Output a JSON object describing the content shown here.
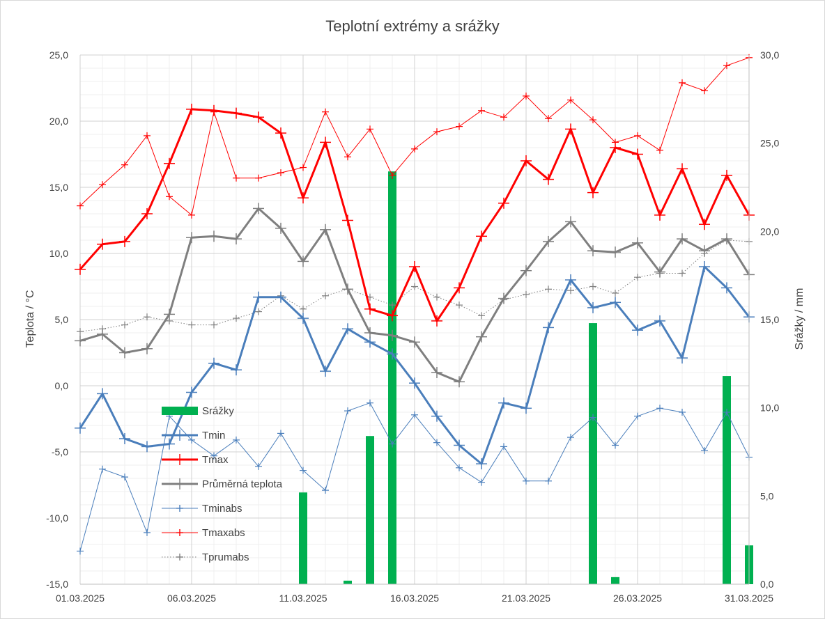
{
  "chart_data": {
    "type": "line",
    "title": "Teplotní extrémy a srážky",
    "ylabel": "Teplota / °C",
    "y2label": "Srážky / mm",
    "ylim": [
      -15,
      25
    ],
    "y2lim": [
      0,
      30
    ],
    "y_ticks": [
      "-15,0",
      "-10,0",
      "-5,0",
      "0,0",
      "5,0",
      "10,0",
      "15,0",
      "20,0",
      "25,0"
    ],
    "y2_ticks": [
      "0,0",
      "5,0",
      "10,0",
      "15,0",
      "20,0",
      "25,0",
      "30,0"
    ],
    "x_tick_labels": [
      "01.03.2025",
      "06.03.2025",
      "11.03.2025",
      "16.03.2025",
      "21.03.2025",
      "26.03.2025",
      "31.03.2025"
    ],
    "x_tick_indices": [
      0,
      5,
      10,
      15,
      20,
      25,
      30
    ],
    "grid": true,
    "legend_position": "center-left",
    "x": [
      "01.03.2025",
      "02.03.2025",
      "03.03.2025",
      "04.03.2025",
      "05.03.2025",
      "06.03.2025",
      "07.03.2025",
      "08.03.2025",
      "09.03.2025",
      "10.03.2025",
      "11.03.2025",
      "12.03.2025",
      "13.03.2025",
      "14.03.2025",
      "15.03.2025",
      "16.03.2025",
      "17.03.2025",
      "18.03.2025",
      "19.03.2025",
      "20.03.2025",
      "21.03.2025",
      "22.03.2025",
      "23.03.2025",
      "24.03.2025",
      "25.03.2025",
      "26.03.2025",
      "27.03.2025",
      "28.03.2025",
      "29.03.2025",
      "30.03.2025",
      "31.03.2025"
    ],
    "series": [
      {
        "name": "Srážky",
        "kind": "bar",
        "axis": "right",
        "color": "#00b050",
        "values": [
          0,
          0,
          0,
          0,
          0,
          0,
          0,
          0,
          0,
          0,
          5.2,
          0,
          0.2,
          8.4,
          23.4,
          0,
          0,
          0,
          0,
          0,
          0,
          0,
          0,
          14.8,
          0.4,
          0,
          0,
          0,
          0,
          11.8,
          2.2
        ]
      },
      {
        "name": "Tmin",
        "kind": "line",
        "axis": "left",
        "color": "#4a7ebb",
        "width": 3,
        "marker": "plus",
        "values": [
          -3.2,
          -0.6,
          -4.0,
          -4.6,
          -4.4,
          -0.5,
          1.7,
          1.2,
          6.7,
          6.7,
          5.1,
          1.1,
          4.3,
          3.3,
          2.4,
          0.2,
          -2.3,
          -4.5,
          -5.9,
          -1.3,
          -1.7,
          4.4,
          8.0,
          5.9,
          6.3,
          4.2,
          4.9,
          2.1,
          9.0,
          7.4,
          5.2
        ]
      },
      {
        "name": "Tmax",
        "kind": "line",
        "axis": "left",
        "color": "#ff0000",
        "width": 3,
        "marker": "plus",
        "values": [
          8.8,
          10.7,
          10.9,
          13.0,
          16.8,
          20.9,
          20.8,
          20.6,
          20.3,
          19.1,
          14.2,
          18.4,
          12.5,
          5.8,
          5.3,
          9.0,
          4.9,
          7.4,
          11.3,
          13.8,
          17.0,
          15.6,
          19.4,
          14.6,
          18.0,
          17.5,
          12.9,
          16.4,
          12.2,
          15.9,
          12.9
        ]
      },
      {
        "name": "Průměrná teplota",
        "kind": "line",
        "axis": "left",
        "color": "#7f7f7f",
        "width": 3,
        "marker": "plus",
        "values": [
          3.4,
          3.9,
          2.5,
          2.8,
          5.4,
          11.2,
          11.3,
          11.1,
          13.4,
          11.9,
          9.4,
          11.8,
          7.3,
          4.0,
          3.8,
          3.3,
          1.0,
          0.3,
          3.7,
          6.6,
          8.7,
          10.9,
          12.4,
          10.2,
          10.1,
          10.8,
          8.6,
          11.1,
          10.2,
          11.1,
          8.4
        ]
      },
      {
        "name": "Tminabs",
        "kind": "line",
        "axis": "left",
        "color": "#4a7ebb",
        "width": 1,
        "marker": "plus",
        "values": [
          -12.5,
          -6.3,
          -6.9,
          -11.1,
          -2.3,
          -4.1,
          -5.3,
          -4.1,
          -6.1,
          -3.6,
          -6.4,
          -7.9,
          -1.9,
          -1.3,
          -4.4,
          -2.2,
          -4.3,
          -6.2,
          -7.3,
          -4.6,
          -7.2,
          -7.2,
          -3.9,
          -2.4,
          -4.5,
          -2.3,
          -1.7,
          -2.0,
          -4.9,
          -2.0,
          -5.4
        ]
      },
      {
        "name": "Tmaxabs",
        "kind": "line",
        "axis": "left",
        "color": "#ff0000",
        "width": 1,
        "marker": "plus",
        "values": [
          13.6,
          15.2,
          16.7,
          18.9,
          14.3,
          12.9,
          20.7,
          15.7,
          15.7,
          16.1,
          16.5,
          20.7,
          17.3,
          19.4,
          15.9,
          17.9,
          19.2,
          19.6,
          20.8,
          20.3,
          21.9,
          20.2,
          21.6,
          20.1,
          18.4,
          18.9,
          17.8,
          22.9,
          22.3,
          24.2,
          24.8
        ]
      },
      {
        "name": "Tprumabs",
        "kind": "line",
        "axis": "left",
        "color": "#808080",
        "width": 1,
        "dash": "dotted",
        "marker": "plus",
        "values": [
          4.1,
          4.3,
          4.6,
          5.2,
          4.9,
          4.6,
          4.6,
          5.1,
          5.6,
          6.8,
          5.8,
          6.8,
          7.3,
          6.7,
          6.1,
          7.5,
          6.7,
          6.1,
          5.3,
          6.5,
          6.9,
          7.3,
          7.2,
          7.5,
          7.0,
          8.2,
          8.5,
          8.5,
          10.0,
          11.0,
          10.9
        ]
      }
    ]
  }
}
